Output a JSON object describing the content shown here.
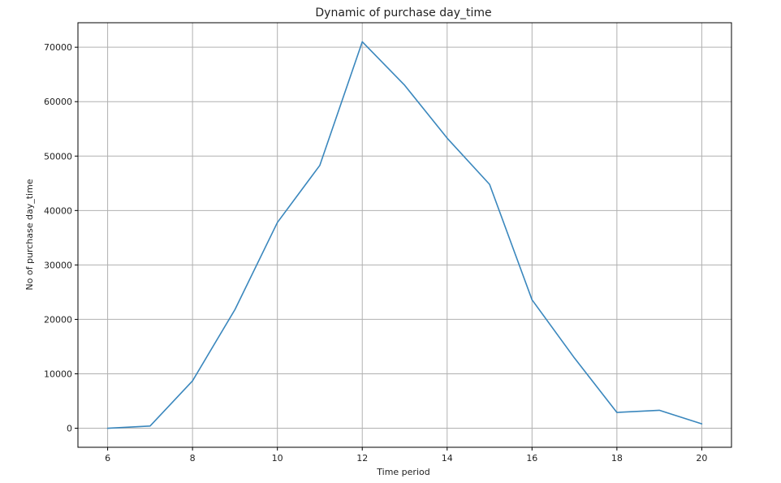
{
  "chart_data": {
    "type": "line",
    "title": "Dynamic of purchase day_time",
    "xlabel": "Time period",
    "ylabel": "No of purchase day_time",
    "xlim": [
      5.3,
      20.7
    ],
    "ylim": [
      -3500,
      74500
    ],
    "xticks": [
      6,
      8,
      10,
      12,
      14,
      16,
      18,
      20
    ],
    "yticks": [
      0,
      10000,
      20000,
      30000,
      40000,
      50000,
      60000,
      70000
    ],
    "grid": true,
    "x": [
      6,
      7,
      8,
      9,
      10,
      11,
      12,
      13,
      14,
      15,
      16,
      17,
      18,
      19,
      20
    ],
    "series": [
      {
        "values": [
          0,
          400,
          8700,
          21800,
          37800,
          48300,
          71000,
          63000,
          53300,
          44800,
          23600,
          12900,
          2900,
          3300,
          800
        ]
      }
    ],
    "line_color": "#3a87bd"
  }
}
